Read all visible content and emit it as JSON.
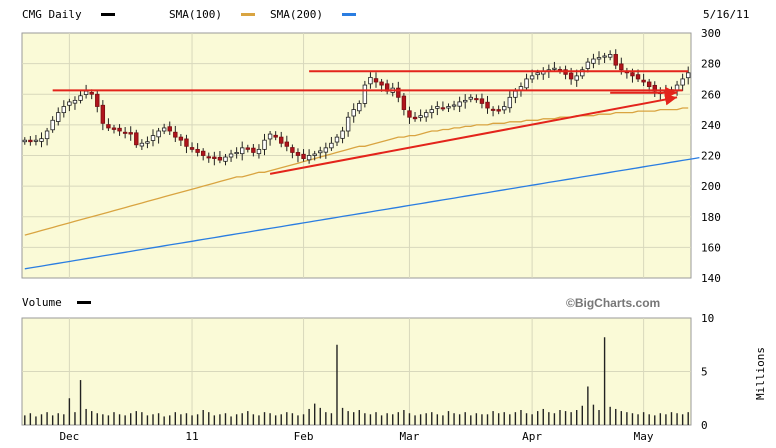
{
  "chart_data": [
    {
      "type": "candlestick",
      "title": "CMG Daily",
      "date_label": "5/16/11",
      "legend": [
        {
          "label": "SMA(100)",
          "color": "#d9a441"
        },
        {
          "label": "SMA(200)",
          "color": "#2a7de1"
        }
      ],
      "legend_main_marker_color": "#000000",
      "y_ticks": [
        140,
        160,
        180,
        200,
        220,
        240,
        260,
        280,
        300
      ],
      "ylim": [
        140,
        300
      ],
      "x_tick_labels": [
        "Dec",
        "11",
        "Feb",
        "Mar",
        "Apr",
        "May"
      ],
      "x_tick_days": [
        8,
        30,
        50,
        69,
        91,
        111
      ],
      "n_days": 120,
      "closes": [
        230,
        229,
        230,
        231,
        236,
        243,
        248,
        252,
        255,
        256,
        259,
        262,
        260,
        252,
        241,
        238,
        237,
        236,
        235,
        234,
        227,
        228,
        229,
        233,
        236,
        238,
        236,
        232,
        230,
        226,
        224,
        222,
        220,
        219,
        218,
        217,
        219,
        221,
        222,
        225,
        224,
        222,
        224,
        230,
        234,
        232,
        228,
        226,
        222,
        220,
        218,
        220,
        221,
        223,
        225,
        228,
        232,
        236,
        245,
        250,
        254,
        266,
        271,
        268,
        266,
        262,
        264,
        258,
        250,
        245,
        244,
        246,
        248,
        250,
        252,
        251,
        252,
        253,
        255,
        256,
        258,
        257,
        254,
        251,
        250,
        249,
        252,
        258,
        262,
        265,
        270,
        272,
        274,
        275,
        276,
        277,
        276,
        273,
        270,
        272,
        276,
        281,
        283,
        284,
        285,
        286,
        279,
        276,
        274,
        272,
        270,
        268,
        265,
        262,
        261,
        262,
        263,
        266,
        270,
        274
      ],
      "sma100": [
        168,
        169,
        170,
        171,
        172,
        173,
        174,
        175,
        176,
        177,
        178,
        179,
        180,
        181,
        182,
        183,
        184,
        185,
        186,
        187,
        188,
        189,
        190,
        191,
        192,
        193,
        194,
        195,
        196,
        197,
        198,
        199,
        200,
        201,
        202,
        203,
        204,
        205,
        206,
        206,
        207,
        208,
        209,
        209,
        210,
        211,
        212,
        213,
        214,
        215,
        216,
        217,
        218,
        219,
        220,
        221,
        222,
        223,
        224,
        225,
        226,
        226,
        227,
        228,
        229,
        230,
        231,
        232,
        232,
        233,
        233,
        234,
        235,
        236,
        236,
        237,
        237,
        238,
        238,
        239,
        239,
        240,
        240,
        240,
        241,
        241,
        241,
        242,
        242,
        242,
        243,
        243,
        243,
        244,
        244,
        244,
        245,
        245,
        245,
        246,
        246,
        246,
        246,
        247,
        247,
        247,
        248,
        248,
        248,
        248,
        249,
        249,
        249,
        249,
        250,
        250,
        250,
        250,
        251,
        251
      ],
      "sma200": [
        146,
        146.6,
        147.2,
        147.8,
        148.4,
        149,
        149.6,
        150.2,
        150.8,
        151.4,
        152,
        152.6,
        153.2,
        153.8,
        154.4,
        155,
        155.6,
        156.2,
        156.8,
        157.4,
        158,
        158.6,
        159.2,
        159.8,
        160.4,
        161,
        161.6,
        162.2,
        162.8,
        163.4,
        164,
        164.6,
        165.2,
        165.8,
        166.4,
        167,
        167.6,
        168.2,
        168.8,
        169.4,
        170,
        170.6,
        171.2,
        171.8,
        172.4,
        173,
        173.6,
        174.2,
        174.8,
        175.4,
        176,
        176.6,
        177.2,
        177.8,
        178.4,
        179,
        179.6,
        180.2,
        180.8,
        181.4,
        182,
        182.6,
        183.2,
        183.8,
        184.4,
        185,
        185.6,
        186.2,
        186.8,
        187.4,
        188,
        188.6,
        189.2,
        189.8,
        190.4,
        191,
        191.6,
        192.2,
        192.8,
        193.4,
        194,
        194.6,
        195.2,
        195.8,
        196.4,
        197,
        197.6,
        198.2,
        198.8,
        199.4,
        200,
        200.6,
        201.2,
        201.8,
        202.4,
        203,
        203.6,
        204.2,
        204.8,
        205.4,
        206,
        206.6,
        207.2,
        207.8,
        208.4,
        209,
        209.6,
        210.2,
        210.8,
        211.4,
        212,
        212.6,
        213.2,
        213.8,
        214.4,
        215,
        215.6,
        216.2,
        216.8,
        217.4,
        218,
        218.6
      ],
      "annotations": [
        {
          "kind": "line",
          "from": [
            5,
            262.5
          ],
          "to": [
            118,
            262.5
          ],
          "color": "#e3241b"
        },
        {
          "kind": "line",
          "from": [
            51,
            275
          ],
          "to": [
            119,
            275
          ],
          "color": "#e3241b"
        },
        {
          "kind": "arrow",
          "from": [
            44,
            208
          ],
          "to": [
            117,
            258
          ],
          "color": "#e3241b"
        },
        {
          "kind": "arrow",
          "from": [
            105,
            261
          ],
          "to": [
            117,
            261
          ],
          "color": "#e3241b"
        }
      ]
    },
    {
      "type": "bar",
      "title": "Volume",
      "brand": "©BigCharts.com",
      "ylabel": "Millions",
      "y_ticks": [
        0,
        5,
        10
      ],
      "ylim": [
        0,
        10
      ],
      "legend_marker_color": "#000000",
      "values": [
        0.9,
        1.1,
        0.8,
        1.0,
        1.2,
        0.9,
        1.1,
        1.0,
        2.5,
        1.2,
        4.2,
        1.5,
        1.3,
        1.1,
        1.0,
        0.9,
        1.2,
        1.0,
        0.9,
        1.1,
        1.3,
        1.2,
        0.9,
        1.0,
        1.1,
        0.8,
        0.9,
        1.2,
        1.0,
        1.1,
        0.9,
        1.0,
        1.4,
        1.2,
        0.9,
        1.0,
        1.1,
        0.8,
        1.0,
        1.1,
        1.3,
        1.0,
        0.9,
        1.2,
        1.1,
        0.9,
        1.0,
        1.2,
        1.1,
        0.9,
        1.0,
        1.5,
        2.0,
        1.6,
        1.2,
        1.1,
        7.5,
        1.6,
        1.3,
        1.2,
        1.4,
        1.1,
        1.0,
        1.2,
        0.9,
        1.1,
        1.0,
        1.2,
        1.4,
        1.1,
        0.9,
        1.0,
        1.1,
        1.2,
        1.0,
        0.9,
        1.3,
        1.1,
        1.0,
        1.2,
        0.9,
        1.1,
        1.0,
        1.0,
        1.3,
        1.1,
        1.2,
        1.0,
        1.2,
        1.4,
        1.1,
        1.0,
        1.3,
        1.5,
        1.2,
        1.1,
        1.4,
        1.3,
        1.2,
        1.4,
        1.8,
        3.6,
        1.9,
        1.4,
        8.2,
        1.7,
        1.5,
        1.3,
        1.2,
        1.1,
        1.0,
        1.2,
        1.0,
        0.9,
        1.1,
        1.0,
        1.2,
        1.1,
        1.0,
        1.2
      ]
    }
  ]
}
